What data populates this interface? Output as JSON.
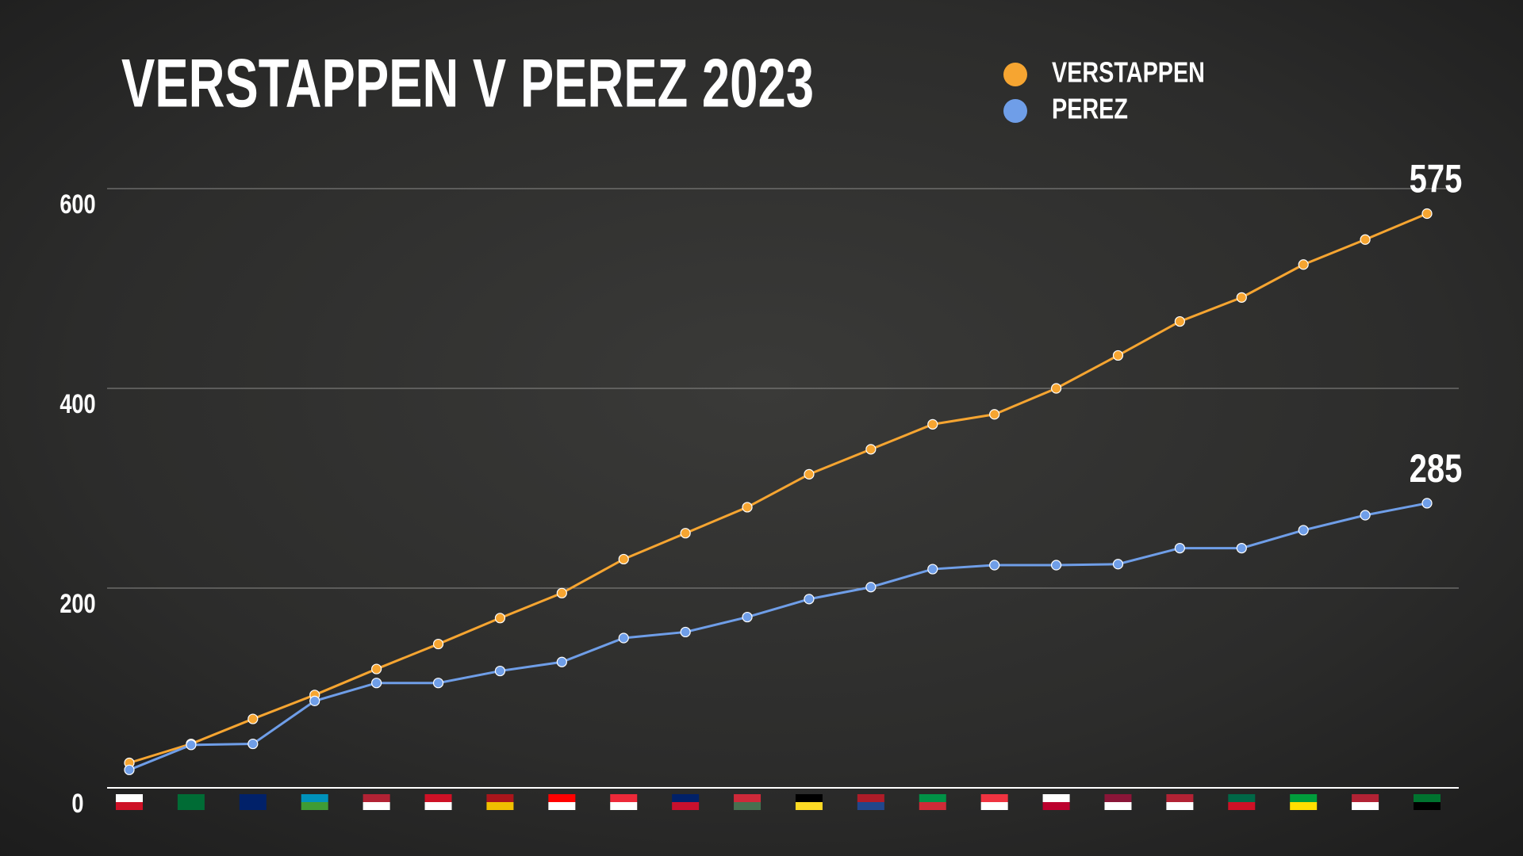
{
  "chart_data": {
    "type": "line",
    "title": "VERSTAPPEN V PEREZ 2023",
    "categories": [
      null,
      null,
      null,
      null,
      null,
      null,
      null,
      null,
      null,
      null,
      null,
      null,
      null,
      null,
      null,
      null,
      null,
      null,
      null,
      null,
      null,
      null
    ],
    "series": [
      {
        "name": "VERSTAPPEN",
        "color": "#f6a531",
        "values": [
          25,
          44,
          69,
          93,
          119,
          144,
          170,
          195,
          229,
          255,
          281,
          314,
          339,
          364,
          374,
          400,
          433,
          467,
          491,
          524,
          549,
          575
        ]
      },
      {
        "name": "PEREZ",
        "color": "#6f9ee8",
        "values": [
          18,
          43,
          44,
          87,
          105,
          105,
          117,
          126,
          150,
          156,
          171,
          189,
          201,
          219,
          223,
          223,
          224,
          240,
          240,
          258,
          273,
          285
        ]
      }
    ],
    "ylim": [
      0,
      600
    ],
    "yticks": [
      0,
      200,
      400,
      600
    ],
    "grid": true
  }
}
